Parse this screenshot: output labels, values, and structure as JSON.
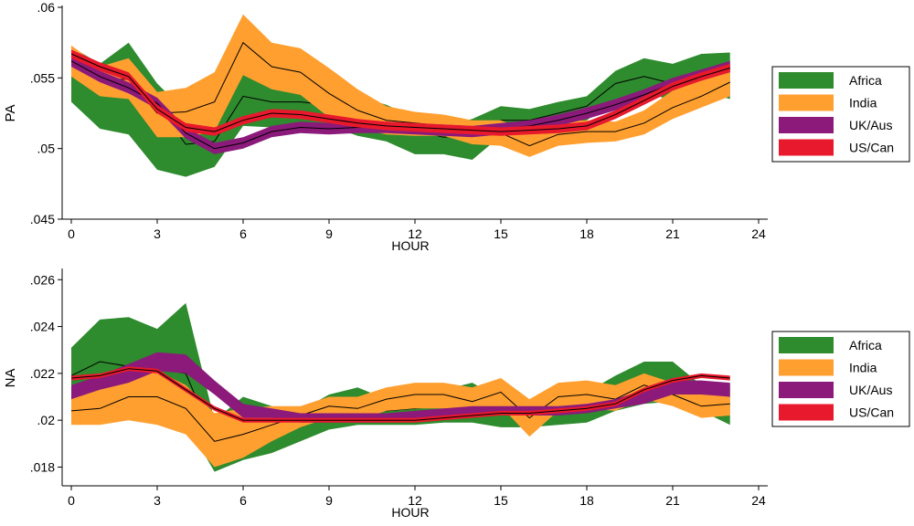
{
  "chart_data": [
    {
      "type": "area",
      "ylabel": "PA",
      "xlabel": "HOUR",
      "xlim": [
        0,
        24
      ],
      "ylim": [
        0.045,
        0.06
      ],
      "x_ticks": [
        0,
        3,
        6,
        9,
        12,
        15,
        18,
        21,
        24
      ],
      "y_ticks": [
        0.045,
        0.05,
        0.055,
        0.06
      ],
      "y_tick_labels": [
        ".045",
        ".05",
        ".055",
        ".06"
      ],
      "hours": [
        0,
        1,
        2,
        3,
        4,
        5,
        6,
        7,
        8,
        9,
        10,
        11,
        12,
        13,
        14,
        15,
        16,
        17,
        18,
        19,
        20,
        21,
        22,
        23
      ],
      "series": [
        {
          "name": "Africa",
          "fill": "#2e8b2e",
          "mean": [
            0.0555,
            0.0547,
            0.056,
            0.053,
            0.0503,
            0.0505,
            0.0537,
            0.0533,
            0.0533,
            0.0531,
            0.0524,
            0.052,
            0.0513,
            0.0508,
            0.051,
            0.052,
            0.052,
            0.0525,
            0.053,
            0.0546,
            0.0551,
            0.0546,
            0.0553,
            0.0557
          ],
          "upper": [
            0.0572,
            0.056,
            0.0575,
            0.0546,
            0.0526,
            0.0528,
            0.0557,
            0.0551,
            0.0548,
            0.0546,
            0.0537,
            0.0531,
            0.0522,
            0.0516,
            0.0521,
            0.053,
            0.0528,
            0.0533,
            0.0537,
            0.0555,
            0.0564,
            0.056,
            0.0567,
            0.0568
          ],
          "lower": [
            0.0533,
            0.0514,
            0.051,
            0.0485,
            0.048,
            0.0487,
            0.0516,
            0.0515,
            0.0518,
            0.0516,
            0.0509,
            0.0505,
            0.0496,
            0.0496,
            0.0492,
            0.0509,
            0.051,
            0.0515,
            0.052,
            0.0535,
            0.054,
            0.0534,
            0.0541,
            0.0535
          ]
        },
        {
          "name": "India",
          "fill": "#ff9f30",
          "mean": [
            0.0565,
            0.0549,
            0.0549,
            0.0525,
            0.0526,
            0.0533,
            0.0575,
            0.0558,
            0.0554,
            0.0539,
            0.0527,
            0.052,
            0.0518,
            0.0516,
            0.0512,
            0.0511,
            0.0502,
            0.051,
            0.0512,
            0.0512,
            0.0518,
            0.0529,
            0.0537,
            0.0547
          ],
          "upper": [
            0.0573,
            0.0558,
            0.0564,
            0.054,
            0.0543,
            0.0554,
            0.0595,
            0.0575,
            0.0571,
            0.0557,
            0.0542,
            0.053,
            0.0526,
            0.0524,
            0.052,
            0.052,
            0.0512,
            0.0519,
            0.052,
            0.0519,
            0.0527,
            0.0541,
            0.055,
            0.056
          ],
          "lower": [
            0.0551,
            0.0537,
            0.0535,
            0.0508,
            0.0508,
            0.0512,
            0.0552,
            0.0542,
            0.0538,
            0.0522,
            0.0514,
            0.051,
            0.0509,
            0.0509,
            0.0503,
            0.0502,
            0.0494,
            0.0502,
            0.0504,
            0.0505,
            0.051,
            0.0521,
            0.0529,
            0.0537
          ]
        },
        {
          "name": "UK/Aus",
          "fill": "#8b1a7a",
          "mean": [
            0.0562,
            0.0551,
            0.0543,
            0.0532,
            0.0511,
            0.05,
            0.0504,
            0.0512,
            0.0515,
            0.0514,
            0.0515,
            0.0515,
            0.0514,
            0.0513,
            0.0512,
            0.0514,
            0.0516,
            0.052,
            0.0525,
            0.0531,
            0.0538,
            0.0546,
            0.0552,
            0.0558
          ],
          "upper": [
            0.0566,
            0.0555,
            0.0547,
            0.0536,
            0.0515,
            0.0504,
            0.0508,
            0.0516,
            0.0519,
            0.0518,
            0.0519,
            0.0519,
            0.0518,
            0.0517,
            0.0516,
            0.0518,
            0.052,
            0.0524,
            0.0529,
            0.0535,
            0.0542,
            0.055,
            0.0556,
            0.0562
          ],
          "lower": [
            0.0558,
            0.0547,
            0.0539,
            0.0528,
            0.0507,
            0.0496,
            0.05,
            0.0508,
            0.0511,
            0.051,
            0.0511,
            0.0511,
            0.051,
            0.0509,
            0.0508,
            0.051,
            0.0512,
            0.0516,
            0.0521,
            0.0527,
            0.0534,
            0.0542,
            0.0548,
            0.0554
          ]
        },
        {
          "name": "US/Can",
          "fill": "#e8192c",
          "mean": [
            0.0567,
            0.0558,
            0.0551,
            0.0528,
            0.0515,
            0.0512,
            0.052,
            0.0525,
            0.0524,
            0.0521,
            0.0518,
            0.0516,
            0.0515,
            0.0514,
            0.0513,
            0.0512,
            0.0513,
            0.0514,
            0.0516,
            0.0524,
            0.0534,
            0.0544,
            0.0551,
            0.0557
          ],
          "upper": [
            0.057,
            0.0561,
            0.0554,
            0.0531,
            0.0518,
            0.0515,
            0.0523,
            0.0528,
            0.0527,
            0.0524,
            0.0521,
            0.0519,
            0.0518,
            0.0517,
            0.0516,
            0.0515,
            0.0516,
            0.0517,
            0.0519,
            0.0527,
            0.0537,
            0.0547,
            0.0554,
            0.056
          ],
          "lower": [
            0.0564,
            0.0555,
            0.0548,
            0.0525,
            0.0512,
            0.0509,
            0.0517,
            0.0522,
            0.0521,
            0.0518,
            0.0515,
            0.0513,
            0.0512,
            0.0511,
            0.051,
            0.0509,
            0.051,
            0.0511,
            0.0513,
            0.0521,
            0.0531,
            0.0541,
            0.0548,
            0.0554
          ]
        }
      ]
    },
    {
      "type": "area",
      "ylabel": "NA",
      "xlabel": "HOUR",
      "xlim": [
        0,
        24
      ],
      "ylim": [
        0.0172,
        0.0264
      ],
      "x_ticks": [
        0,
        3,
        6,
        9,
        12,
        15,
        18,
        21,
        24
      ],
      "y_ticks": [
        0.018,
        0.02,
        0.022,
        0.024,
        0.026
      ],
      "y_tick_labels": [
        ".018",
        ".02",
        ".022",
        ".024",
        ".026"
      ],
      "hours": [
        0,
        1,
        2,
        3,
        4,
        5,
        6,
        7,
        8,
        9,
        10,
        11,
        12,
        13,
        14,
        15,
        16,
        17,
        18,
        19,
        20,
        21,
        22,
        23
      ],
      "series": [
        {
          "name": "Africa",
          "fill": "#2e8b2e",
          "mean": [
            0.0219,
            0.0225,
            0.0223,
            0.0222,
            0.022,
            0.0191,
            0.0194,
            0.0197,
            0.0199,
            0.0202,
            0.0204,
            0.0204,
            0.0205,
            0.0206,
            0.0207,
            0.0204,
            0.0205,
            0.0205,
            0.0206,
            0.0209,
            0.0213,
            0.0215,
            0.0211,
            0.021
          ],
          "upper": [
            0.0231,
            0.0243,
            0.0244,
            0.0239,
            0.025,
            0.02,
            0.021,
            0.0206,
            0.0204,
            0.0211,
            0.0214,
            0.0209,
            0.0211,
            0.0213,
            0.0216,
            0.0209,
            0.0209,
            0.021,
            0.0212,
            0.0219,
            0.0225,
            0.0225,
            0.0215,
            0.0215
          ],
          "lower": [
            0.0206,
            0.0208,
            0.0205,
            0.0204,
            0.0199,
            0.0178,
            0.0183,
            0.0186,
            0.0191,
            0.0196,
            0.0198,
            0.0198,
            0.0198,
            0.0199,
            0.0199,
            0.0197,
            0.0197,
            0.0198,
            0.0199,
            0.0204,
            0.0207,
            0.0208,
            0.0204,
            0.0198
          ]
        },
        {
          "name": "India",
          "fill": "#ff9f30",
          "mean": [
            0.0204,
            0.0205,
            0.021,
            0.021,
            0.0205,
            0.0191,
            0.0194,
            0.0198,
            0.0202,
            0.0206,
            0.0205,
            0.0209,
            0.0211,
            0.0211,
            0.0208,
            0.0212,
            0.0201,
            0.021,
            0.0211,
            0.0209,
            0.0215,
            0.0211,
            0.0206,
            0.0207
          ],
          "upper": [
            0.0212,
            0.0216,
            0.0221,
            0.0221,
            0.0215,
            0.0203,
            0.0205,
            0.0206,
            0.0206,
            0.021,
            0.021,
            0.0214,
            0.0216,
            0.0216,
            0.0214,
            0.0218,
            0.0209,
            0.0216,
            0.0217,
            0.0215,
            0.022,
            0.0216,
            0.0212,
            0.0213
          ],
          "lower": [
            0.0198,
            0.0198,
            0.02,
            0.0198,
            0.0194,
            0.018,
            0.0184,
            0.0191,
            0.0197,
            0.0201,
            0.02,
            0.0204,
            0.0205,
            0.0205,
            0.0203,
            0.0206,
            0.0193,
            0.0204,
            0.0205,
            0.0204,
            0.0209,
            0.0206,
            0.0201,
            0.0202
          ]
        },
        {
          "name": "UK/Aus",
          "fill": "#8b1a7a",
          "mean": [
            0.0212,
            0.0216,
            0.022,
            0.0225,
            0.0224,
            0.0214,
            0.0204,
            0.0203,
            0.0201,
            0.0201,
            0.0201,
            0.0201,
            0.0202,
            0.0203,
            0.0204,
            0.0204,
            0.0204,
            0.0204,
            0.0205,
            0.0207,
            0.021,
            0.0214,
            0.0214,
            0.0213
          ],
          "upper": [
            0.0215,
            0.0219,
            0.0224,
            0.0229,
            0.0228,
            0.0217,
            0.0207,
            0.0205,
            0.0203,
            0.0203,
            0.0203,
            0.0203,
            0.0204,
            0.0205,
            0.0206,
            0.0206,
            0.0206,
            0.0206,
            0.0207,
            0.0209,
            0.0213,
            0.0217,
            0.0217,
            0.0216
          ],
          "lower": [
            0.0209,
            0.0213,
            0.0216,
            0.0221,
            0.022,
            0.0211,
            0.0201,
            0.0201,
            0.0199,
            0.0199,
            0.0199,
            0.0199,
            0.02,
            0.0201,
            0.0202,
            0.0202,
            0.0202,
            0.0202,
            0.0203,
            0.0205,
            0.0207,
            0.0211,
            0.0211,
            0.021
          ],
          "hide_mean": true
        },
        {
          "name": "US/Can",
          "fill": "#e8192c",
          "mean": [
            0.0218,
            0.0219,
            0.0222,
            0.0221,
            0.0213,
            0.0205,
            0.02,
            0.02,
            0.02,
            0.02,
            0.02,
            0.02,
            0.02,
            0.0201,
            0.0202,
            0.0203,
            0.0203,
            0.0204,
            0.0205,
            0.0207,
            0.0213,
            0.0217,
            0.0219,
            0.0218
          ],
          "upper": [
            0.0219,
            0.022,
            0.0223,
            0.0222,
            0.0214,
            0.0206,
            0.0201,
            0.0201,
            0.0201,
            0.0201,
            0.0201,
            0.0201,
            0.0201,
            0.0202,
            0.0203,
            0.0204,
            0.0204,
            0.0205,
            0.0206,
            0.0208,
            0.0214,
            0.0218,
            0.022,
            0.0219
          ],
          "lower": [
            0.0217,
            0.0218,
            0.0221,
            0.022,
            0.0212,
            0.0204,
            0.0199,
            0.0199,
            0.0199,
            0.0199,
            0.0199,
            0.0199,
            0.0199,
            0.02,
            0.0201,
            0.0202,
            0.0202,
            0.0203,
            0.0204,
            0.0206,
            0.0212,
            0.0216,
            0.0218,
            0.0217
          ]
        }
      ]
    }
  ]
}
